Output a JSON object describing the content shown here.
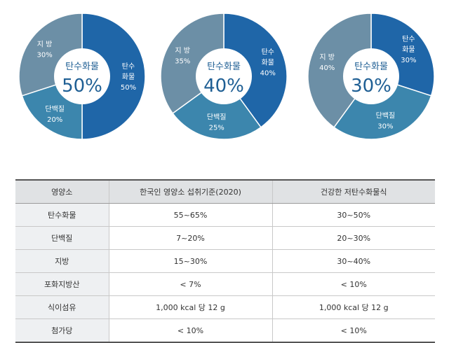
{
  "colors": {
    "carbohydrate": "#1f66a8",
    "protein": "#3c86ad",
    "fat": "#6c8fa6",
    "center": "#ffffff",
    "center_text": "#1f5f94"
  },
  "chart_data": [
    {
      "type": "pie",
      "center_title": "탄수화물",
      "center_value": "50%",
      "slices": [
        {
          "label": [
            "탄수",
            "화물",
            "50%"
          ],
          "value": 50,
          "color_key": "carbohydrate"
        },
        {
          "label": [
            "단백질",
            "20%"
          ],
          "value": 20,
          "color_key": "protein"
        },
        {
          "label": [
            "지 방",
            "30%"
          ],
          "value": 30,
          "color_key": "fat"
        }
      ]
    },
    {
      "type": "pie",
      "center_title": "탄수화물",
      "center_value": "40%",
      "slices": [
        {
          "label": [
            "탄수",
            "화물",
            "40%"
          ],
          "value": 40,
          "color_key": "carbohydrate"
        },
        {
          "label": [
            "단백질",
            "25%"
          ],
          "value": 25,
          "color_key": "protein"
        },
        {
          "label": [
            "지 방",
            "35%"
          ],
          "value": 35,
          "color_key": "fat"
        }
      ]
    },
    {
      "type": "pie",
      "center_title": "탄수화물",
      "center_value": "30%",
      "slices": [
        {
          "label": [
            "탄수",
            "화물",
            "30%"
          ],
          "value": 30,
          "color_key": "carbohydrate"
        },
        {
          "label": [
            "단백질",
            "30%"
          ],
          "value": 30,
          "color_key": "protein"
        },
        {
          "label": [
            "지 방",
            "40%"
          ],
          "value": 40,
          "color_key": "fat"
        }
      ]
    }
  ],
  "table": {
    "headers": [
      "영양소",
      "한국인 영양소 섭취기준(2020)",
      "건강한 저탄수화물식"
    ],
    "rows": [
      [
        "탄수화물",
        "55~65%",
        "30~50%"
      ],
      [
        "단백질",
        "7~20%",
        "20~30%"
      ],
      [
        "지방",
        "15~30%",
        "30~40%"
      ],
      [
        "포화지방산",
        "< 7%",
        "< 10%"
      ],
      [
        "식이섬유",
        "1,000 kcal 당 12 g",
        "1,000 kcal 당 12 g"
      ],
      [
        "첨가당",
        "< 10%",
        "< 10%"
      ]
    ]
  }
}
